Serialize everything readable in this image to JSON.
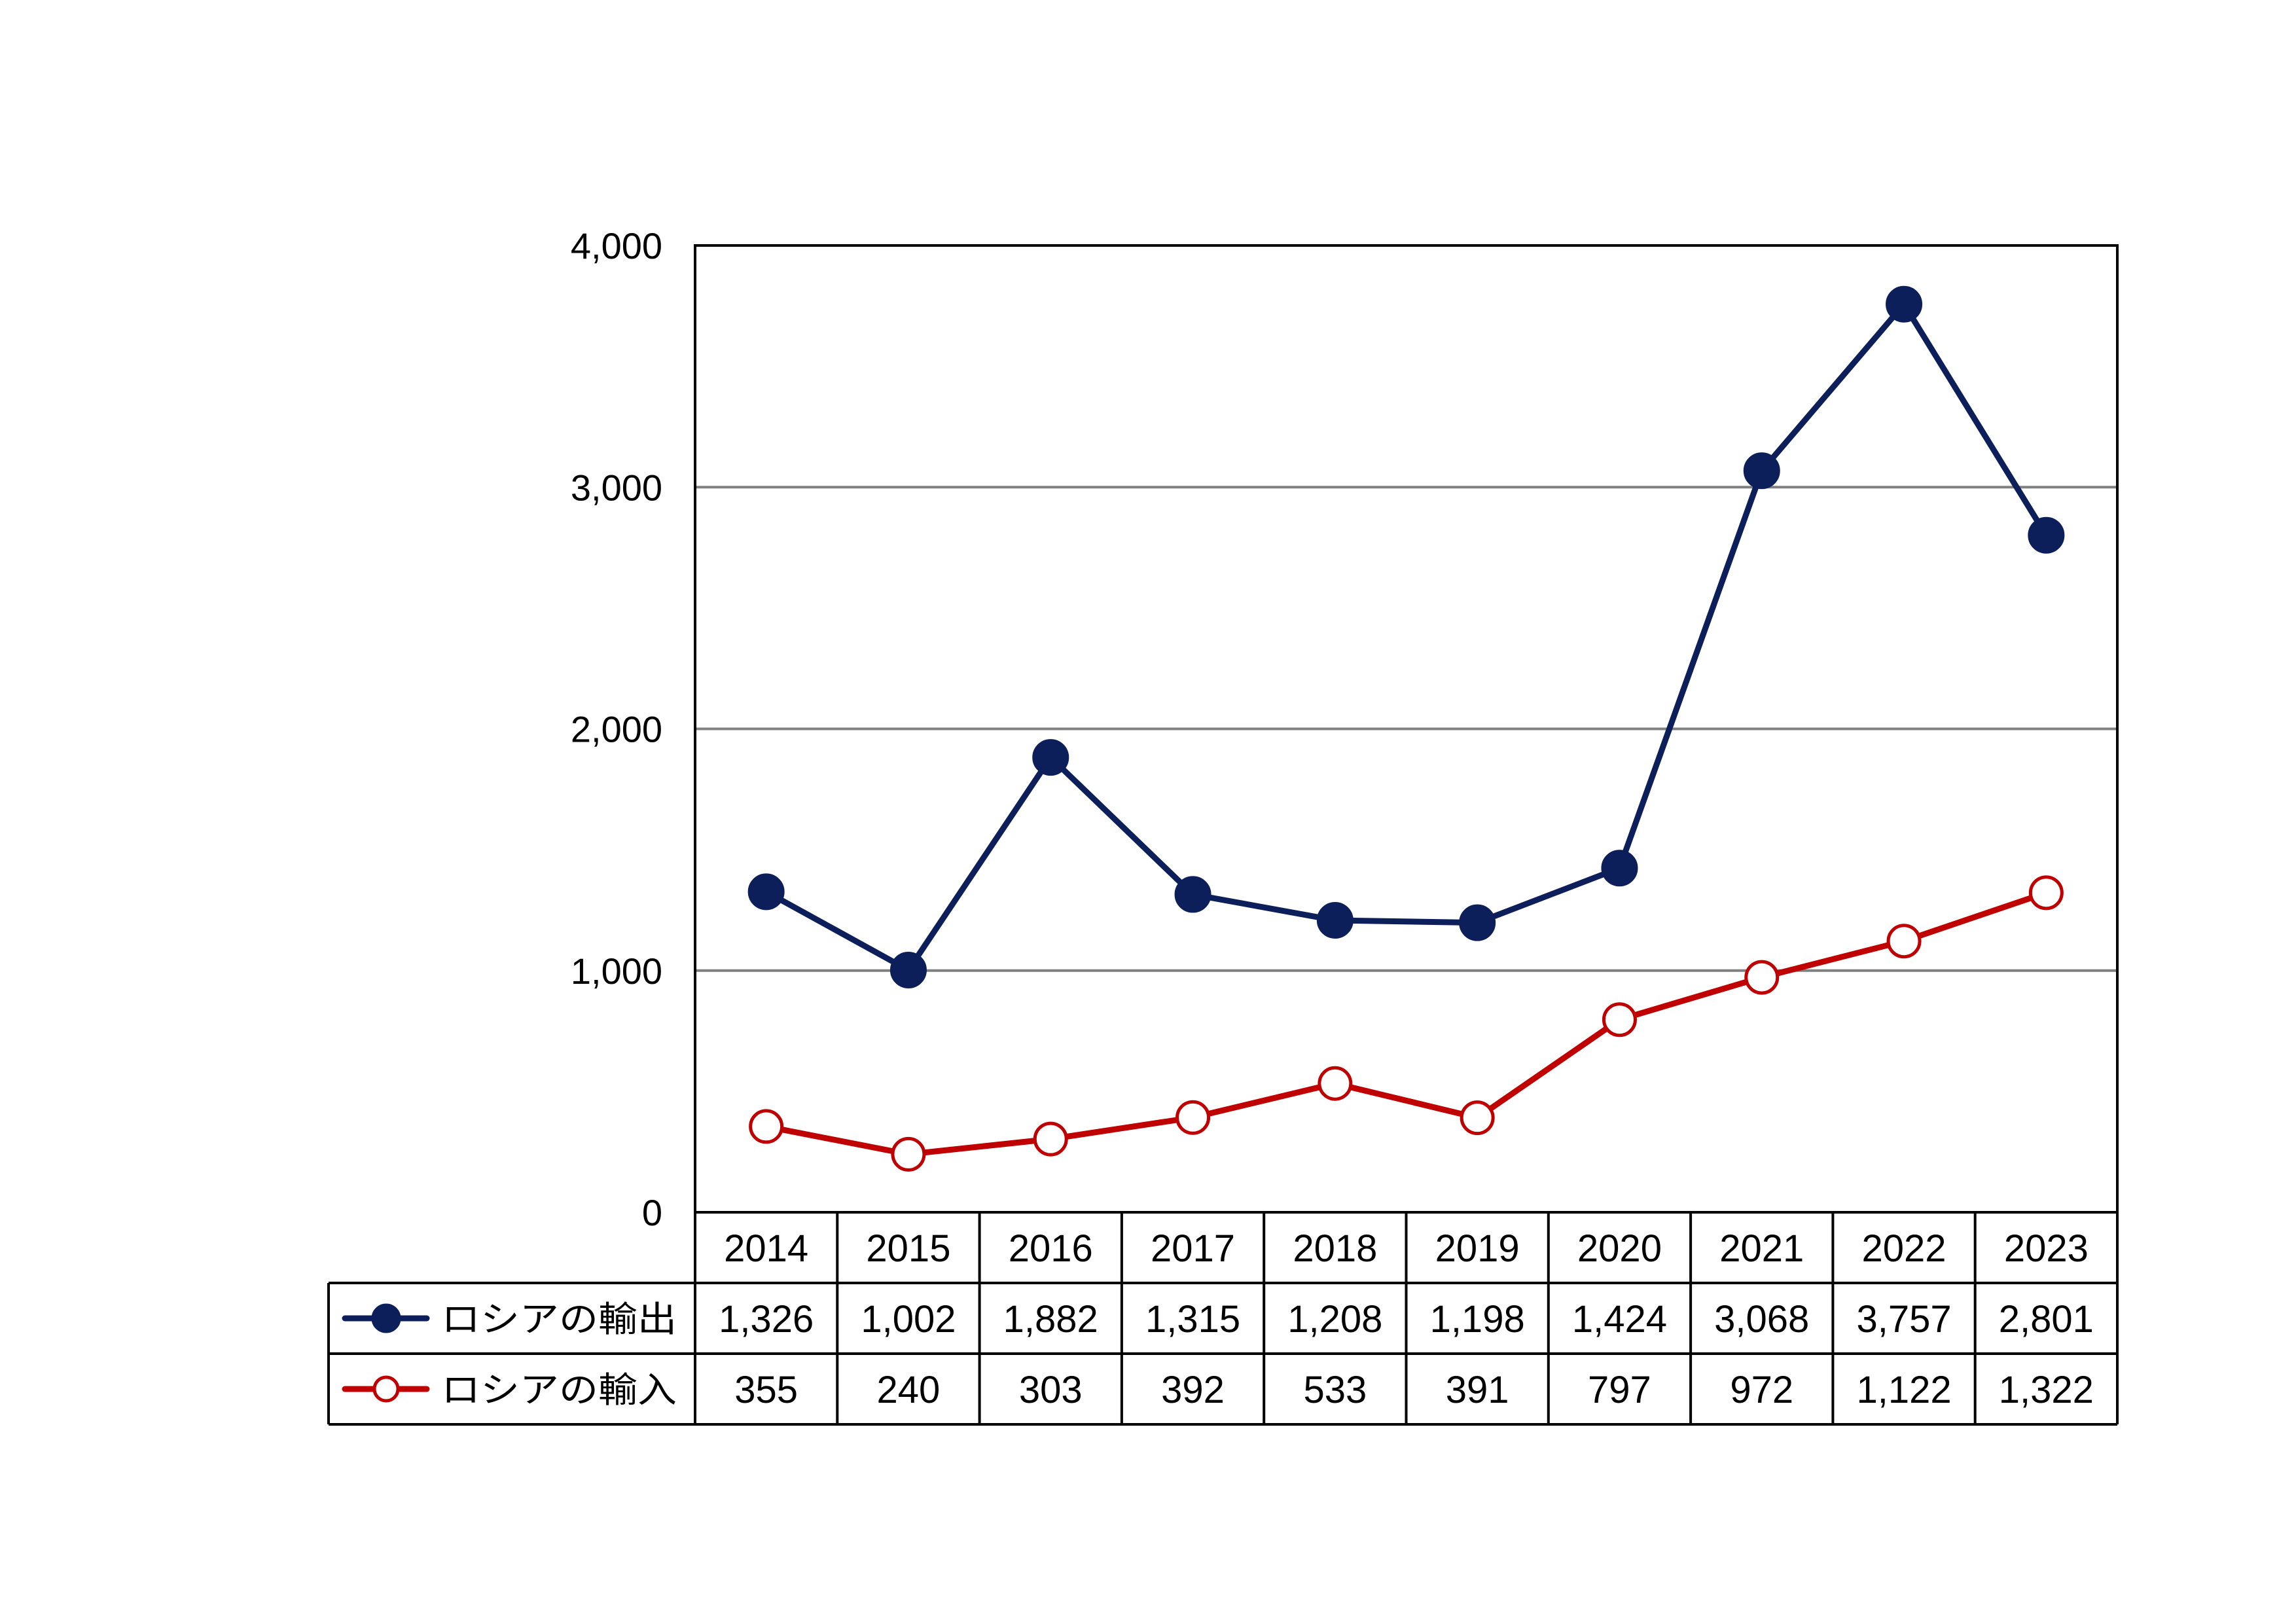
{
  "chart_data": {
    "type": "line",
    "categories": [
      "2014",
      "2015",
      "2016",
      "2017",
      "2018",
      "2019",
      "2020",
      "2021",
      "2022",
      "2023"
    ],
    "series": [
      {
        "name": "ロシアの輸出",
        "values": [
          1326,
          1002,
          1882,
          1315,
          1208,
          1198,
          1424,
          3068,
          3757,
          2801
        ],
        "labels": [
          "1,326",
          "1,002",
          "1,882",
          "1,315",
          "1,208",
          "1,198",
          "1,424",
          "3,068",
          "3,757",
          "2,801"
        ],
        "color": "#0c1f5b",
        "marker": "filled-circle"
      },
      {
        "name": "ロシアの輸入",
        "values": [
          355,
          240,
          303,
          392,
          533,
          391,
          797,
          972,
          1122,
          1322
        ],
        "labels": [
          "355",
          "240",
          "303",
          "392",
          "533",
          "391",
          "797",
          "972",
          "1,122",
          "1,322"
        ],
        "color": "#c00000",
        "marker": "open-circle"
      }
    ],
    "ylim": [
      0,
      4000
    ],
    "yticks": [
      0,
      1000,
      2000,
      3000,
      4000
    ],
    "ytick_labels": [
      "0",
      "1,000",
      "2,000",
      "3,000",
      "4,000"
    ],
    "grid": true,
    "data_table": true,
    "gridline_color": "#808080"
  }
}
